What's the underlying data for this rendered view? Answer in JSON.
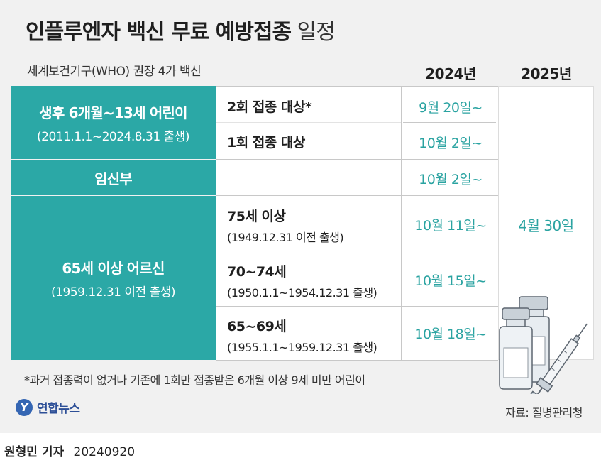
{
  "title": {
    "main": "인플루엔자 백신 무료 예방접종",
    "suffix": " 일정"
  },
  "subtitle": "세계보건기구(WHO) 권장 4가 백신",
  "years": [
    "2024년",
    "2025년"
  ],
  "groups": {
    "children": {
      "label": "생후 6개월~13세 어린이",
      "sub": "(2011.1.1~2024.8.31 출생)"
    },
    "pregnant": {
      "label": "임신부"
    },
    "elderly": {
      "label": "65세 이상 어르신",
      "sub": "(1959.12.31 이전 출생)"
    }
  },
  "rows": [
    {
      "detail": "2회 접종 대상*",
      "date": "9월 20일~"
    },
    {
      "detail": "1회 접종 대상",
      "date": "10월 2일~"
    },
    {
      "detail": "",
      "date": "10월 2일~"
    },
    {
      "detail": "75세 이상",
      "detail_sub": "(1949.12.31 이전 출생)",
      "date": "10월 11일~"
    },
    {
      "detail": "70~74세",
      "detail_sub": "(1950.1.1~1954.12.31 출생)",
      "date": "10월 15일~"
    },
    {
      "detail": "65~69세",
      "detail_sub": "(1955.1.1~1959.12.31 출생)",
      "date": "10월 18일~"
    }
  ],
  "end_date_2025": "4월 30일",
  "footnote": "*과거 접종력이 없거나 기존에 1회만 접종받은 6개월 이상 9세 미만 어린이",
  "logo": {
    "mark": "Y",
    "text": "연합뉴스"
  },
  "source": "자료: 질병관리청",
  "credit": {
    "reporter": "원형민 기자",
    "date": "20240920"
  },
  "colors": {
    "accent": "#2ba8a6",
    "date_text": "#2aa3a1",
    "background": "#f1f1f1"
  },
  "icons": [
    "vaccine-vial-icon",
    "syringe-icon"
  ]
}
